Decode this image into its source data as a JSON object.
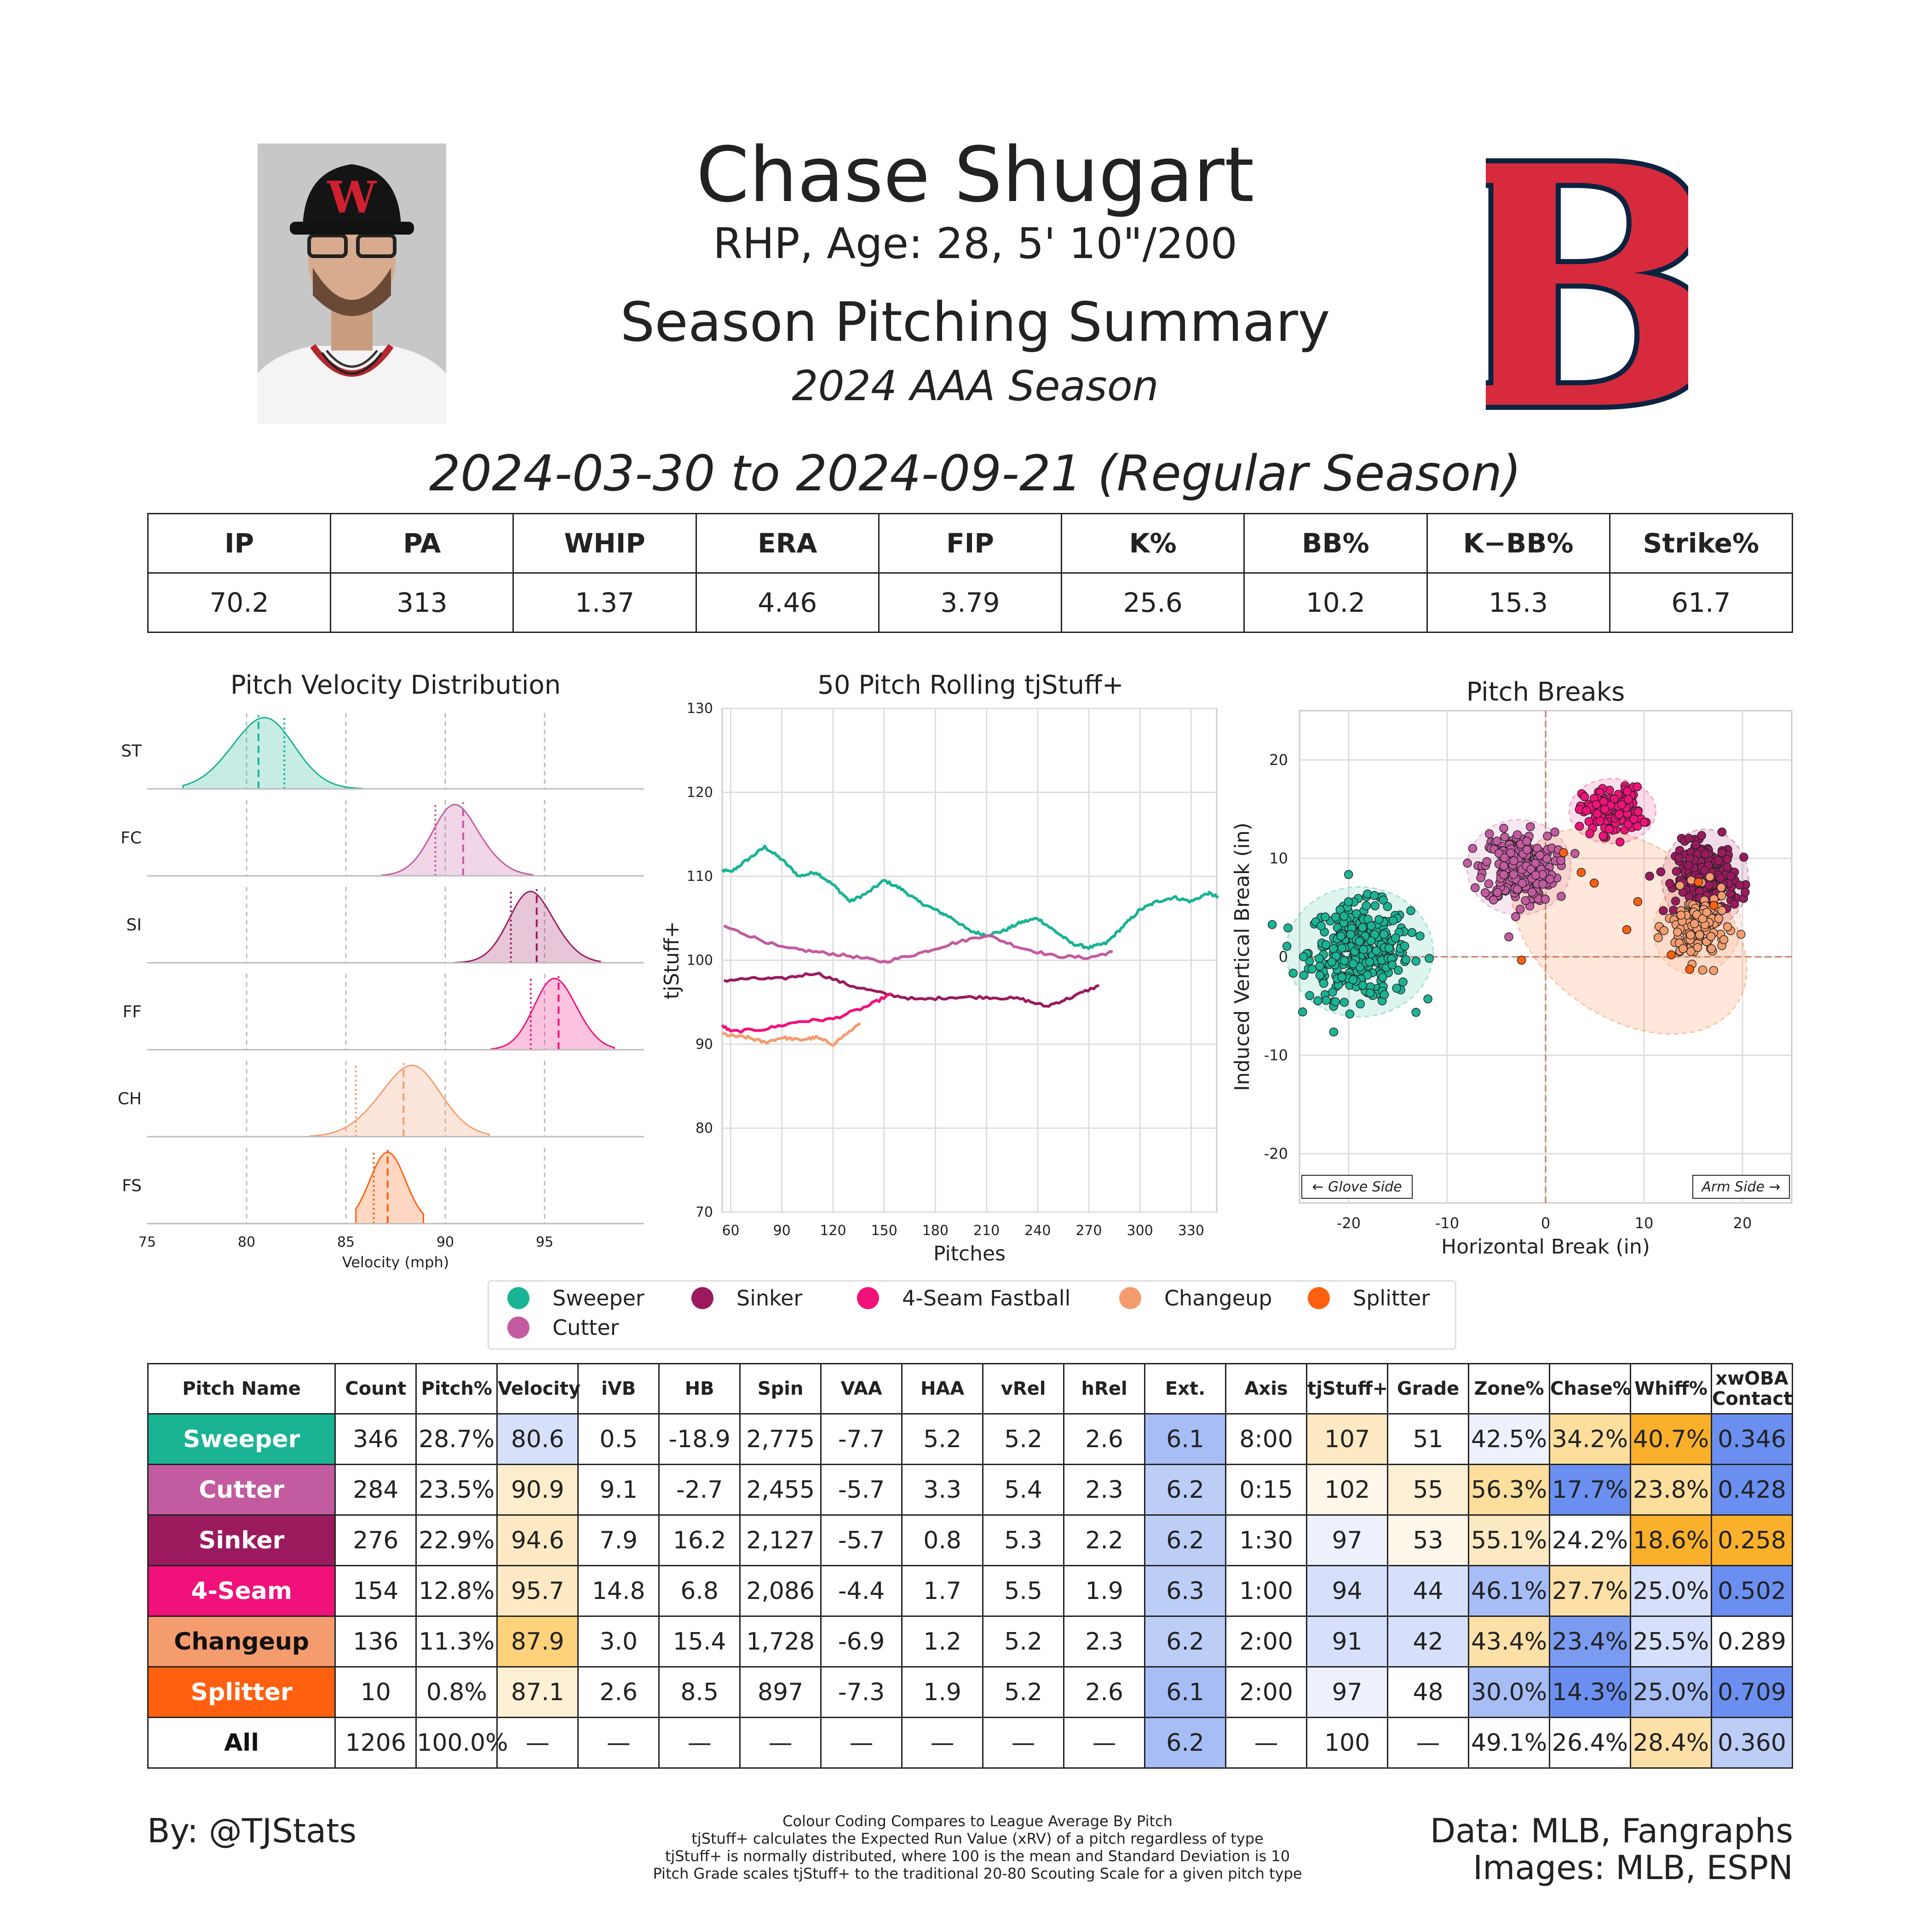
{
  "header": {
    "player_name": "Chase Shugart",
    "bio": "RHP, Age: 28, 5' 10\"/200",
    "title": "Season Pitching Summary",
    "season": "2024 AAA Season",
    "date_range": "2024-03-30 to 2024-09-21 (Regular Season)",
    "cap_letter": "W",
    "logo_letter": "B"
  },
  "colors": {
    "Sweeper": "#1ab394",
    "Cutter": "#c25ba0",
    "Sinker": "#9b1a5e",
    "4-Seam": "#f0117a",
    "Changeup": "#f59c6e",
    "Splitter": "#ff6010",
    "logo_red": "#d72a3d",
    "logo_navy": "#0c2340"
  },
  "stats_table": {
    "headers": [
      "IP",
      "PA",
      "WHIP",
      "ERA",
      "FIP",
      "K%",
      "BB%",
      "K−BB%",
      "Strike%"
    ],
    "values": [
      "70.2",
      "313",
      "1.37",
      "4.46",
      "3.79",
      "25.6",
      "10.2",
      "15.3",
      "61.7"
    ]
  },
  "chart_data": [
    {
      "type": "area",
      "title": "Pitch Velocity Distribution",
      "xlabel": "Velocity (mph)",
      "xlim": [
        75,
        100
      ],
      "xticks": [
        "75",
        "80",
        "85",
        "90",
        "95"
      ],
      "series": [
        {
          "name": "ST",
          "mean": 80.6,
          "league_mean": 81.9,
          "min": 76.8,
          "max": 85.8,
          "sd": 1.6,
          "skew": 0.2
        },
        {
          "name": "FC",
          "mean": 90.9,
          "league_mean": 89.5,
          "min": 86.8,
          "max": 94.4,
          "sd": 1.3,
          "skew": -0.4
        },
        {
          "name": "SI",
          "mean": 94.6,
          "league_mean": 93.3,
          "min": 90.5,
          "max": 97.8,
          "sd": 1.2,
          "skew": -0.3
        },
        {
          "name": "FF",
          "mean": 95.7,
          "league_mean": 94.3,
          "min": 92.3,
          "max": 98.5,
          "sd": 1.1,
          "skew": -0.2
        },
        {
          "name": "CH",
          "mean": 87.9,
          "league_mean": 85.5,
          "min": 83.2,
          "max": 92.2,
          "sd": 1.6,
          "skew": 0.3
        },
        {
          "name": "FS",
          "mean": 87.1,
          "league_mean": 86.4,
          "min": 85.5,
          "max": 88.9,
          "sd": 0.9,
          "skew": 0.0
        }
      ]
    },
    {
      "type": "line",
      "title": "50 Pitch Rolling tjStuff+",
      "xlabel": "Pitches",
      "ylabel": "tjStuff+",
      "ylim": [
        70,
        130
      ],
      "xlim": [
        55,
        345
      ],
      "yticks": [
        "70",
        "80",
        "90",
        "100",
        "110",
        "120",
        "130"
      ],
      "xticks": [
        "60",
        "90",
        "120",
        "150",
        "180",
        "210",
        "240",
        "270",
        "300",
        "330"
      ],
      "series": [
        {
          "name": "Sweeper",
          "x": [
            50,
            60,
            70,
            80,
            90,
            100,
            110,
            120,
            130,
            140,
            150,
            160,
            170,
            180,
            190,
            200,
            210,
            220,
            230,
            240,
            250,
            260,
            270,
            280,
            290,
            300,
            310,
            320,
            330,
            340,
            346
          ],
          "y": [
            111,
            110.5,
            112,
            113.5,
            112,
            110,
            110.5,
            109,
            107,
            108,
            109.5,
            108.5,
            107,
            106,
            105,
            103.5,
            103,
            103.5,
            104.5,
            105,
            103.5,
            102,
            101.5,
            102,
            104,
            106,
            107,
            107.5,
            107,
            108,
            107.5
          ]
        },
        {
          "name": "Cutter",
          "x": [
            50,
            70,
            90,
            110,
            130,
            150,
            170,
            190,
            210,
            230,
            250,
            270,
            284
          ],
          "y": [
            104.5,
            103,
            101.5,
            101,
            100.5,
            99.8,
            100.8,
            102,
            103,
            101.5,
            100.5,
            100.3,
            101
          ]
        },
        {
          "name": "Sinker",
          "x": [
            50,
            70,
            90,
            110,
            130,
            150,
            170,
            190,
            210,
            230,
            245,
            260,
            276
          ],
          "y": [
            97.5,
            97.8,
            97.8,
            98.5,
            97,
            96,
            95.3,
            95.6,
            95.6,
            95.4,
            94.5,
            95.6,
            97
          ]
        },
        {
          "name": "4-Seam",
          "x": [
            50,
            60,
            80,
            100,
            120,
            140,
            154
          ],
          "y": [
            93,
            91.5,
            91.8,
            92.7,
            93,
            94.5,
            96
          ]
        },
        {
          "name": "Changeup",
          "x": [
            50,
            60,
            70,
            80,
            90,
            100,
            110,
            120,
            136
          ],
          "y": [
            91.5,
            91,
            90.8,
            90.2,
            90.8,
            90.5,
            90.8,
            90,
            92.5
          ]
        }
      ]
    },
    {
      "type": "scatter",
      "title": "Pitch Breaks",
      "xlabel": "Horizontal Break (in)",
      "ylabel": "Induced Vertical Break (in)",
      "xlim": [
        -25,
        25
      ],
      "ylim": [
        -25,
        25
      ],
      "xticks": [
        "-20",
        "-10",
        "0",
        "10",
        "20"
      ],
      "yticks": [
        "20",
        "10",
        "0",
        "-10",
        "-20"
      ],
      "glove_side": "← Glove Side",
      "arm_side": "Arm Side →",
      "series": [
        {
          "name": "Sweeper",
          "count": 346,
          "hb_mean": -18.9,
          "ivb_mean": 0.5,
          "hb_sd": 3.4,
          "ivb_sd": 3.0
        },
        {
          "name": "Cutter",
          "count": 284,
          "hb_mean": -2.7,
          "ivb_mean": 9.1,
          "hb_sd": 2.4,
          "ivb_sd": 2.2
        },
        {
          "name": "Sinker",
          "count": 276,
          "hb_mean": 16.2,
          "ivb_mean": 7.9,
          "hb_sd": 2.0,
          "ivb_sd": 2.3
        },
        {
          "name": "4-Seam Fastball",
          "count": 154,
          "hb_mean": 6.8,
          "ivb_mean": 14.8,
          "hb_sd": 2.0,
          "ivb_sd": 1.5
        },
        {
          "name": "Changeup",
          "count": 136,
          "hb_mean": 15.4,
          "ivb_mean": 3.0,
          "hb_sd": 2.0,
          "ivb_sd": 2.2
        },
        {
          "name": "Splitter",
          "count": 10,
          "hb_mean": 8.5,
          "ivb_mean": 2.6,
          "hb_sd": 6.0,
          "ivb_sd": 4.0
        }
      ]
    }
  ],
  "legend": [
    {
      "name": "Sweeper",
      "color": "#1ab394"
    },
    {
      "name": "Sinker",
      "color": "#9b1a5e"
    },
    {
      "name": "4-Seam Fastball",
      "color": "#f0117a"
    },
    {
      "name": "Changeup",
      "color": "#f59c6e"
    },
    {
      "name": "Splitter",
      "color": "#ff6010"
    },
    {
      "name": "Cutter",
      "color": "#c25ba0"
    }
  ],
  "pitch_table": {
    "headers": [
      "Pitch Name",
      "Count",
      "Pitch%",
      "Velocity",
      "iVB",
      "HB",
      "Spin",
      "VAA",
      "HAA",
      "vRel",
      "hRel",
      "Ext.",
      "Axis",
      "tjStuff+",
      "Grade",
      "Zone%",
      "Chase%",
      "Whiff%",
      "xwOBA Contact"
    ],
    "rows": [
      {
        "name": "Sweeper",
        "name_bg": "#1ab394",
        "name_color": "#ffffff",
        "cells": [
          "346",
          "28.7%",
          "80.6",
          "0.5",
          "-18.9",
          "2,775",
          "-7.7",
          "5.2",
          "5.2",
          "2.6",
          "6.1",
          "8:00",
          "107",
          "51",
          "42.5%",
          "34.2%",
          "40.7%",
          "0.346"
        ],
        "bg": [
          "",
          "",
          "#d6e0fa",
          "",
          "",
          "",
          "",
          "",
          "",
          "",
          "#a7bdf6",
          "",
          "#fde9c3",
          "",
          "#eef1fb",
          "#fdde9c",
          "#fbb02c",
          "#6a8ff0"
        ]
      },
      {
        "name": "Cutter",
        "name_bg": "#c25ba0",
        "name_color": "#ffffff",
        "cells": [
          "284",
          "23.5%",
          "90.9",
          "9.1",
          "-2.7",
          "2,455",
          "-5.7",
          "3.3",
          "5.4",
          "2.3",
          "6.2",
          "0:15",
          "102",
          "55",
          "56.3%",
          "17.7%",
          "23.8%",
          "0.428"
        ],
        "bg": [
          "",
          "",
          "#fdedcd",
          "",
          "",
          "",
          "",
          "",
          "",
          "",
          "#bccdf6",
          "",
          "#fff7ea",
          "#fdf0d4",
          "#fdde9c",
          "#6a8ff0",
          "#fdde9c",
          "#6a8ff0"
        ]
      },
      {
        "name": "Sinker",
        "name_bg": "#9b1a5e",
        "name_color": "#ffffff",
        "cells": [
          "276",
          "22.9%",
          "94.6",
          "7.9",
          "16.2",
          "2,127",
          "-5.7",
          "0.8",
          "5.3",
          "2.2",
          "6.2",
          "1:30",
          "97",
          "53",
          "55.1%",
          "24.2%",
          "18.6%",
          "0.258"
        ],
        "bg": [
          "",
          "",
          "#fde9c3",
          "",
          "",
          "",
          "",
          "",
          "",
          "",
          "#bccdf6",
          "",
          "#eef1fb",
          "#fff7ea",
          "#fde9c3",
          "",
          "#fbb02c",
          "#fbb02c"
        ]
      },
      {
        "name": "4-Seam",
        "name_bg": "#f0117a",
        "name_color": "#ffffff",
        "cells": [
          "154",
          "12.8%",
          "95.7",
          "14.8",
          "6.8",
          "2,086",
          "-4.4",
          "1.7",
          "5.5",
          "1.9",
          "6.3",
          "1:00",
          "94",
          "44",
          "46.1%",
          "27.7%",
          "25.0%",
          "0.502"
        ],
        "bg": [
          "",
          "",
          "#fde9c3",
          "",
          "",
          "",
          "",
          "",
          "",
          "",
          "#bccdf6",
          "",
          "#d6e0fa",
          "#d6e0fa",
          "#a7bdf6",
          "#fde0a8",
          "#d6e0fa",
          "#6a8ff0"
        ]
      },
      {
        "name": "Changeup",
        "name_bg": "#f59c6e",
        "name_color": "#111111",
        "cells": [
          "136",
          "11.3%",
          "87.9",
          "3.0",
          "15.4",
          "1,728",
          "-6.9",
          "1.2",
          "5.2",
          "2.3",
          "6.2",
          "2:00",
          "91",
          "42",
          "43.4%",
          "23.4%",
          "25.5%",
          "0.289"
        ],
        "bg": [
          "",
          "",
          "#fdd27a",
          "",
          "",
          "",
          "",
          "",
          "",
          "",
          "#bccdf6",
          "",
          "#d6e0fa",
          "#d6e0fa",
          "#fde0a8",
          "#7b9bf1",
          "#d6e0fa",
          ""
        ]
      },
      {
        "name": "Splitter",
        "name_bg": "#ff6010",
        "name_color": "#ffffff",
        "cells": [
          "10",
          "0.8%",
          "87.1",
          "2.6",
          "8.5",
          "897",
          "-7.3",
          "1.9",
          "5.2",
          "2.6",
          "6.1",
          "2:00",
          "97",
          "48",
          "30.0%",
          "14.3%",
          "25.0%",
          "0.709"
        ],
        "bg": [
          "",
          "",
          "#fdf0d4",
          "",
          "",
          "",
          "",
          "",
          "",
          "",
          "#a7bdf6",
          "",
          "#eef1fb",
          "",
          "#a7bdf6",
          "#6a8ff0",
          "#a7bdf6",
          "#6a8ff0"
        ]
      },
      {
        "name": "All",
        "name_bg": "#ffffff",
        "name_color": "#111111",
        "cells": [
          "1206",
          "100.0%",
          "—",
          "—",
          "—",
          "—",
          "—",
          "—",
          "—",
          "—",
          "6.2",
          "—",
          "100",
          "—",
          "49.1%",
          "26.4%",
          "28.4%",
          "0.360"
        ],
        "bg": [
          "",
          "",
          "",
          "",
          "",
          "",
          "",
          "",
          "",
          "",
          "#a7bdf6",
          "",
          "",
          "",
          "",
          "",
          "#fde0a8",
          "#bccdf6"
        ]
      }
    ]
  },
  "footer": {
    "by": "By: @TJStats",
    "notes": [
      "Colour Coding Compares to League Average By Pitch",
      "tjStuff+ calculates the Expected Run Value (xRV) of a pitch regardless of type",
      "tjStuff+ is normally distributed, where 100 is the mean and Standard Deviation is 10",
      "Pitch Grade scales tjStuff+ to the traditional 20-80 Scouting Scale for a given pitch type"
    ],
    "data_source": "Data: MLB, Fangraphs",
    "image_source": "Images: MLB, ESPN"
  }
}
